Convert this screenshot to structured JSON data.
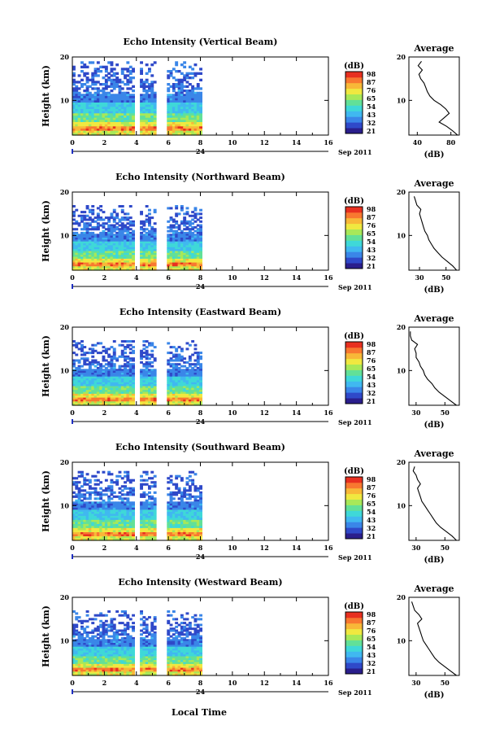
{
  "figure": {
    "xlabel": "Local Time",
    "date_left": "24",
    "date_right": "Sep 2011",
    "avg_title": "Average",
    "colorbar_unit": "(dB)",
    "avg_xunit": "(dB)",
    "colors": [
      "#2a1e8c",
      "#2f49c9",
      "#3a86e8",
      "#40b8f0",
      "#3fd8d8",
      "#62e098",
      "#a8e858",
      "#f0e840",
      "#f8b838",
      "#f87830",
      "#e83020"
    ]
  },
  "chart_data": [
    {
      "type": "heatmap",
      "title": "Echo Intensity (Vertical Beam)",
      "ylabel": "Height (km)",
      "xlim": [
        0,
        16
      ],
      "ylim": [
        2,
        20
      ],
      "xticks": [
        "0",
        "2",
        "4",
        "6",
        "8",
        "10",
        "12",
        "14",
        "16"
      ],
      "xticklabels": [
        "0",
        "2",
        "4",
        "6",
        "8",
        "10",
        "12",
        "14",
        "16"
      ],
      "yticks": [
        "10",
        "20"
      ],
      "data_extent": [
        0,
        8.1
      ],
      "gaps": [
        [
          3.9,
          4.3
        ],
        [
          5.3,
          5.9
        ]
      ],
      "top_km": 19,
      "colorbar": {
        "unit": "(dB)",
        "ticks": [
          "21",
          "32",
          "43",
          "54",
          "65",
          "76",
          "87",
          "98"
        ]
      },
      "average": {
        "title": "Average",
        "xlabel": "(dB)",
        "xlim": [
          30,
          90
        ],
        "xticks": [
          "40",
          "80"
        ],
        "height": [
          2,
          3,
          4,
          5,
          6,
          7,
          8,
          9,
          10,
          11,
          12,
          13,
          14,
          15,
          16,
          17,
          18,
          19
        ],
        "value": [
          88,
          82,
          75,
          66,
          72,
          78,
          74,
          68,
          60,
          55,
          52,
          50,
          48,
          44,
          42,
          46,
          41,
          45
        ]
      }
    },
    {
      "type": "heatmap",
      "title": "Echo Intensity (Northward Beam)",
      "ylabel": "Height (km)",
      "xlim": [
        0,
        16
      ],
      "ylim": [
        2,
        20
      ],
      "xticks": [
        "0",
        "2",
        "4",
        "6",
        "8",
        "10",
        "12",
        "14",
        "16"
      ],
      "xticklabels": [
        "0",
        "2",
        "4",
        "6",
        "8",
        "10",
        "12",
        "14",
        "16"
      ],
      "yticks": [
        "10",
        "20"
      ],
      "data_extent": [
        0,
        8.1
      ],
      "gaps": [
        [
          3.9,
          4.3
        ],
        [
          5.3,
          5.9
        ]
      ],
      "top_km": 17,
      "colorbar": {
        "unit": "(dB)",
        "ticks": [
          "21",
          "32",
          "43",
          "54",
          "65",
          "76",
          "87",
          "98"
        ]
      },
      "average": {
        "title": "Average",
        "xlabel": "(dB)",
        "xlim": [
          22,
          60
        ],
        "xticks": [
          "30",
          "50"
        ],
        "height": [
          2,
          3,
          4,
          5,
          6,
          7,
          8,
          9,
          10,
          11,
          12,
          13,
          14,
          15,
          16,
          17,
          18,
          19
        ],
        "value": [
          58,
          55,
          51,
          47,
          44,
          41,
          39,
          37,
          36,
          34,
          33,
          32,
          31,
          30,
          31,
          28,
          27,
          26
        ]
      }
    },
    {
      "type": "heatmap",
      "title": "Echo Intensity (Eastward Beam)",
      "ylabel": "Height (km)",
      "xlim": [
        0,
        16
      ],
      "ylim": [
        2,
        20
      ],
      "xticks": [
        "0",
        "2",
        "4",
        "6",
        "8",
        "10",
        "12",
        "14",
        "16"
      ],
      "xticklabels": [
        "0",
        "2",
        "4",
        "6",
        "8",
        "10",
        "12",
        "14",
        "16"
      ],
      "yticks": [
        "10",
        "20"
      ],
      "data_extent": [
        0,
        8.1
      ],
      "gaps": [
        [
          3.9,
          4.3
        ],
        [
          5.3,
          5.9
        ]
      ],
      "top_km": 17,
      "colorbar": {
        "unit": "(dB)",
        "ticks": [
          "21",
          "32",
          "43",
          "54",
          "65",
          "76",
          "87",
          "98"
        ]
      },
      "average": {
        "title": "Average",
        "xlabel": "(dB)",
        "xlim": [
          25,
          60
        ],
        "xticks": [
          "30",
          "50"
        ],
        "height": [
          2,
          3,
          4,
          5,
          6,
          7,
          8,
          9,
          10,
          11,
          12,
          13,
          14,
          15,
          16,
          17,
          18,
          19
        ],
        "value": [
          58,
          54,
          50,
          46,
          43,
          41,
          38,
          36,
          35,
          33,
          32,
          30,
          30,
          29,
          31,
          27,
          26,
          26
        ]
      }
    },
    {
      "type": "heatmap",
      "title": "Echo Intensity (Southward Beam)",
      "ylabel": "Height (km)",
      "xlim": [
        0,
        16
      ],
      "ylim": [
        2,
        20
      ],
      "xticks": [
        "0",
        "2",
        "4",
        "6",
        "8",
        "10",
        "12",
        "14",
        "16"
      ],
      "xticklabels": [
        "0",
        "2",
        "4",
        "6",
        "8",
        "10",
        "12",
        "14",
        "16"
      ],
      "yticks": [
        "10",
        "20"
      ],
      "data_extent": [
        0,
        8.1
      ],
      "gaps": [
        [
          3.9,
          4.3
        ],
        [
          5.3,
          5.9
        ]
      ],
      "top_km": 18,
      "colorbar": {
        "unit": "(dB)",
        "ticks": [
          "21",
          "32",
          "43",
          "54",
          "65",
          "76",
          "87",
          "98"
        ]
      },
      "average": {
        "title": "Average",
        "xlabel": "(dB)",
        "xlim": [
          25,
          60
        ],
        "xticks": [
          "30",
          "50"
        ],
        "height": [
          2,
          3,
          4,
          5,
          6,
          7,
          8,
          9,
          10,
          11,
          12,
          13,
          14,
          15,
          16,
          17,
          18,
          19
        ],
        "value": [
          58,
          55,
          51,
          47,
          44,
          42,
          40,
          38,
          36,
          34,
          33,
          32,
          31,
          33,
          31,
          30,
          28,
          29
        ]
      }
    },
    {
      "type": "heatmap",
      "title": "Echo Intensity (Westward Beam)",
      "ylabel": "Height (km)",
      "xlim": [
        0,
        16
      ],
      "ylim": [
        2,
        20
      ],
      "xticks": [
        "0",
        "2",
        "4",
        "6",
        "8",
        "10",
        "12",
        "14",
        "16"
      ],
      "xticklabels": [
        "0",
        "2",
        "4",
        "6",
        "8",
        "10",
        "12",
        "14",
        "16"
      ],
      "yticks": [
        "10",
        "20"
      ],
      "data_extent": [
        0,
        8.1
      ],
      "gaps": [
        [
          3.9,
          4.3
        ],
        [
          5.3,
          5.9
        ]
      ],
      "top_km": 17,
      "colorbar": {
        "unit": "(dB)",
        "ticks": [
          "21",
          "32",
          "43",
          "54",
          "65",
          "76",
          "87",
          "98"
        ]
      },
      "average": {
        "title": "Average",
        "xlabel": "(dB)",
        "xlim": [
          25,
          60
        ],
        "xticks": [
          "30",
          "50"
        ],
        "height": [
          2,
          3,
          4,
          5,
          6,
          7,
          8,
          9,
          10,
          11,
          12,
          13,
          14,
          15,
          16,
          17,
          18,
          19
        ],
        "value": [
          58,
          54,
          50,
          46,
          43,
          41,
          39,
          37,
          35,
          34,
          33,
          32,
          31,
          34,
          32,
          29,
          28,
          27
        ]
      }
    }
  ]
}
